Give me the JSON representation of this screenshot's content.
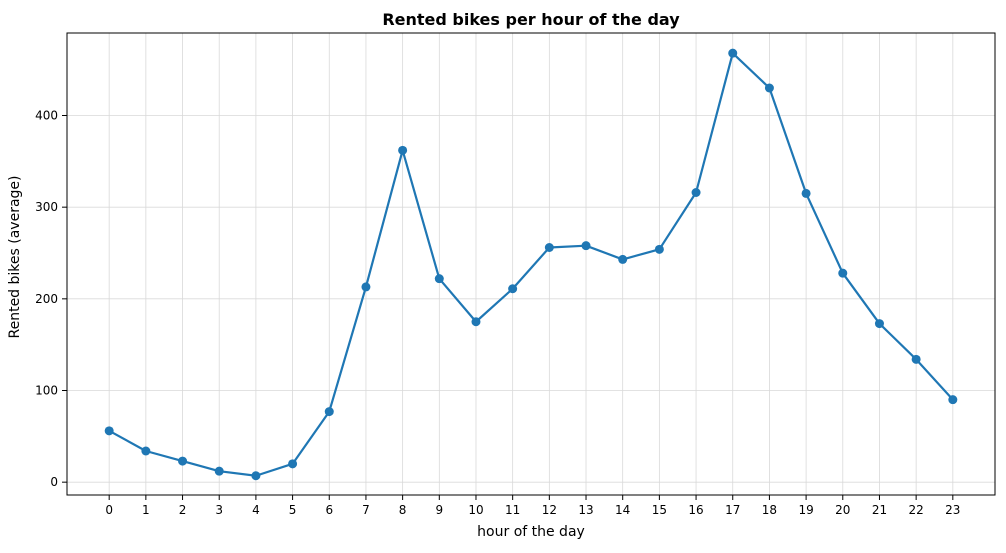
{
  "chart_data": {
    "type": "line",
    "title": "Rented bikes per hour of the day",
    "xlabel": "hour of the day",
    "ylabel": "Rented bikes (average)",
    "categories": [
      "0",
      "1",
      "2",
      "3",
      "4",
      "5",
      "6",
      "7",
      "8",
      "9",
      "10",
      "11",
      "12",
      "13",
      "14",
      "15",
      "16",
      "17",
      "18",
      "19",
      "20",
      "21",
      "22",
      "23"
    ],
    "x": [
      0,
      1,
      2,
      3,
      4,
      5,
      6,
      7,
      8,
      9,
      10,
      11,
      12,
      13,
      14,
      15,
      16,
      17,
      18,
      19,
      20,
      21,
      22,
      23
    ],
    "series": [
      {
        "values": [
          56,
          34,
          23,
          12,
          7,
          20,
          77,
          213,
          362,
          222,
          175,
          211,
          256,
          258,
          243,
          254,
          316,
          468,
          430,
          315,
          228,
          173,
          134,
          90
        ]
      }
    ],
    "xlim": [
      -1.15,
      24.15
    ],
    "ylim": [
      -14,
      490
    ],
    "yticks": [
      0,
      100,
      200,
      300,
      400
    ],
    "grid": true,
    "legend": "none",
    "colors": {
      "line": "#1f77b4",
      "grid": "#d9d9d9",
      "axes": "#000000"
    }
  }
}
